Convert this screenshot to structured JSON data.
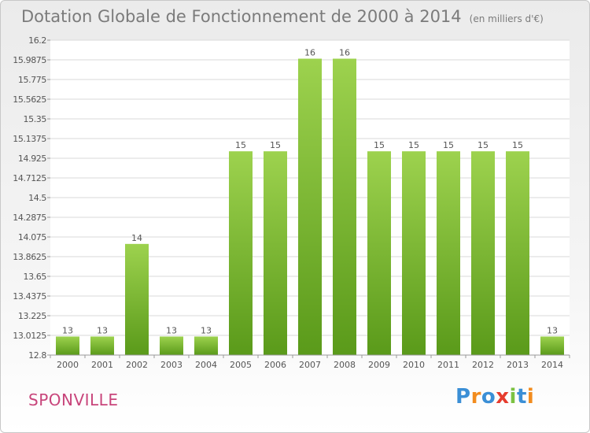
{
  "title": "Dotation Globale de Fonctionnement de 2000 à 2014",
  "unit_note": "(en milliers d'€)",
  "commune": "SPONVILLE",
  "logo": {
    "letters": [
      "P",
      "r",
      "o",
      "x",
      "i",
      "t",
      "i"
    ],
    "colors": [
      "#3b8fd6",
      "#f28c1e",
      "#3b8fd6",
      "#e63c2e",
      "#7cc242",
      "#3b8fd6",
      "#f28c1e"
    ]
  },
  "chart_data": {
    "type": "bar",
    "categories": [
      "2000",
      "2001",
      "2002",
      "2003",
      "2004",
      "2005",
      "2006",
      "2007",
      "2008",
      "2009",
      "2010",
      "2011",
      "2012",
      "2013",
      "2014"
    ],
    "values": [
      13,
      13,
      14,
      13,
      13,
      15,
      15,
      16,
      16,
      15,
      15,
      15,
      15,
      15,
      13
    ],
    "data_labels": [
      "13",
      "13",
      "14",
      "13",
      "13",
      "15",
      "15",
      "16",
      "16",
      "15",
      "15",
      "15",
      "15",
      "15",
      "13"
    ],
    "yticks": [
      12.8,
      13.0125,
      13.225,
      13.4375,
      13.65,
      13.8625,
      14.075,
      14.2875,
      14.5,
      14.7125,
      14.925,
      15.1375,
      15.35,
      15.5625,
      15.775,
      15.9875,
      16.2
    ],
    "ytick_labels": [
      "12.8",
      "13.0125",
      "13.225",
      "13.4375",
      "13.65",
      "13.8625",
      "14.075",
      "14.2875",
      "14.5",
      "14.7125",
      "14.925",
      "15.1375",
      "15.35",
      "15.5625",
      "15.775",
      "15.9875",
      "16.2"
    ],
    "ylim": [
      12.8,
      16.2
    ],
    "grid": true,
    "colors": {
      "bar_light": "#9dd24e",
      "bar_dark": "#5a9a1a",
      "grid": "#d9d9d9",
      "text": "#555555"
    }
  }
}
